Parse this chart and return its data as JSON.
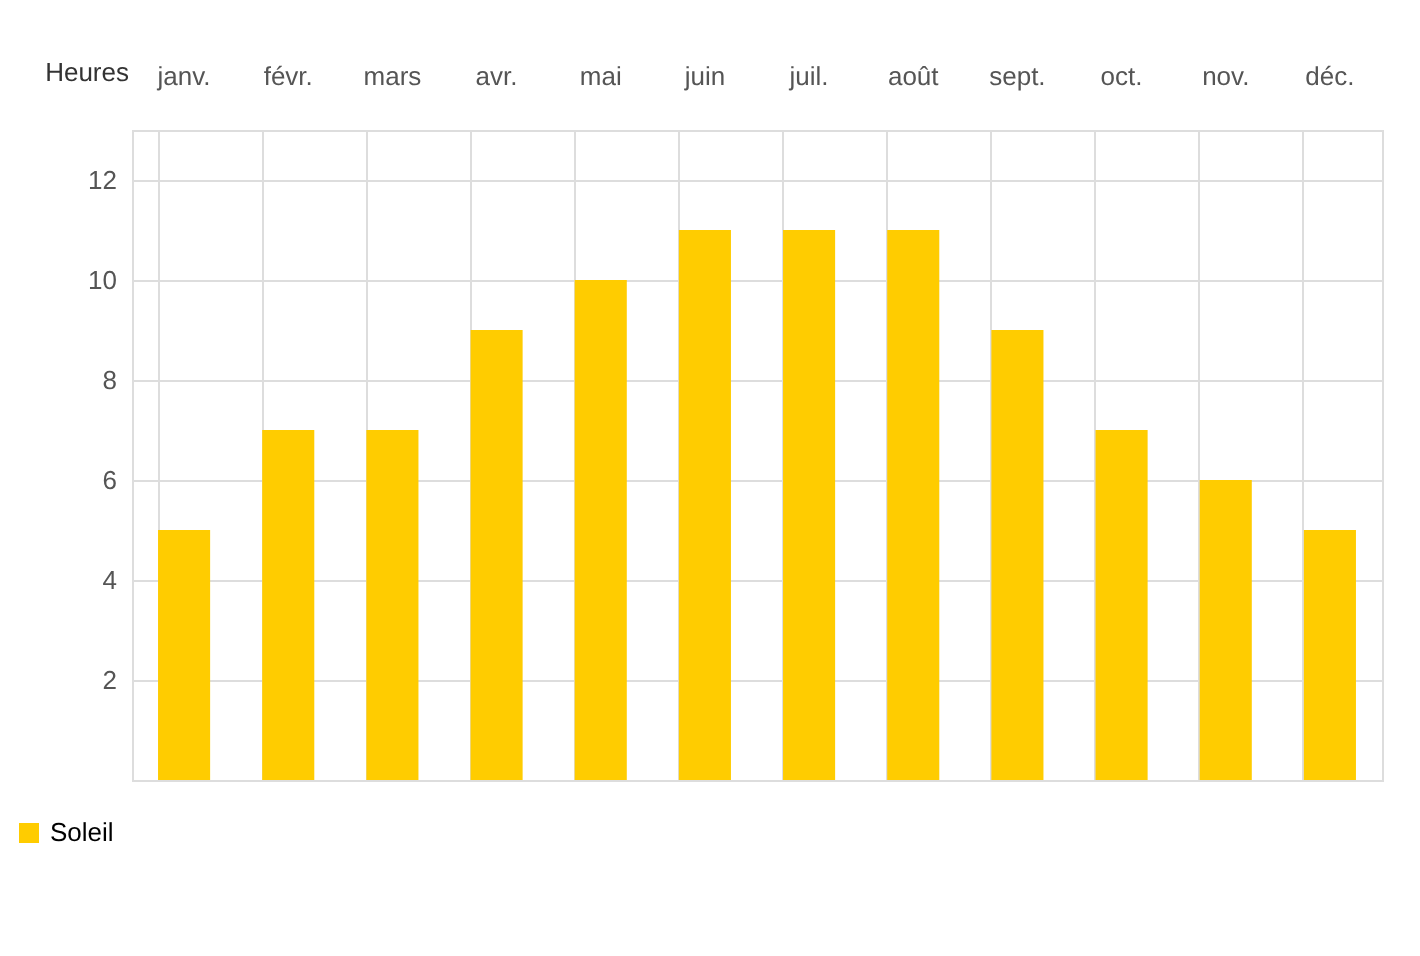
{
  "chart_data": {
    "type": "bar",
    "ylabel": "Heures",
    "categories": [
      "janv.",
      "févr.",
      "mars",
      "avr.",
      "mai",
      "juin",
      "juil.",
      "août",
      "sept.",
      "oct.",
      "nov.",
      "déc."
    ],
    "series": [
      {
        "name": "Soleil",
        "color": "#ffcc00",
        "values": [
          5,
          7,
          7,
          9,
          10,
          11,
          11,
          11,
          9,
          7,
          6,
          5
        ]
      }
    ],
    "ylim": [
      0,
      13
    ],
    "yticks": [
      2,
      4,
      6,
      8,
      10,
      12
    ],
    "grid": true,
    "legend": "bottom left"
  }
}
